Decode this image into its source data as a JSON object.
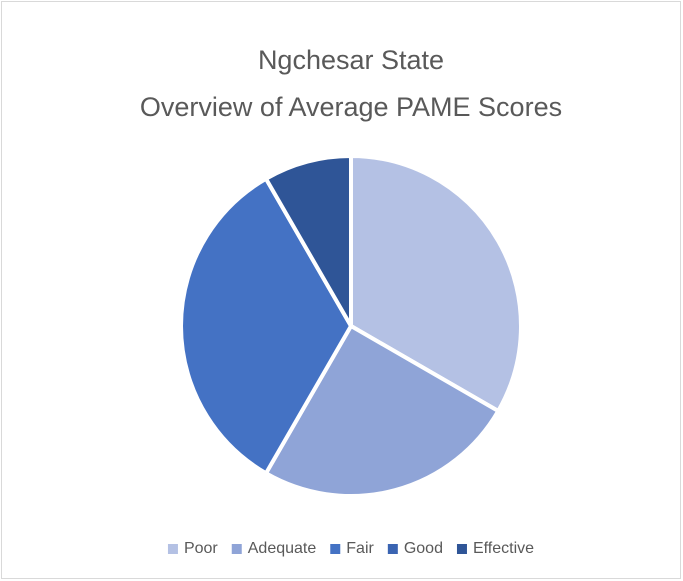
{
  "chart_data": {
    "type": "pie",
    "title": [
      "Ngchesar State",
      "Overview of Average PAME Scores"
    ],
    "categories": [
      "Poor",
      "Adequate",
      "Fair",
      "Good",
      "Effective"
    ],
    "values": [
      4,
      3,
      4,
      0,
      1
    ],
    "colors": [
      "#b4c1e4",
      "#8fa4d7",
      "#4472c4",
      "#3a64b2",
      "#2f5597"
    ],
    "legend": "bottom"
  }
}
